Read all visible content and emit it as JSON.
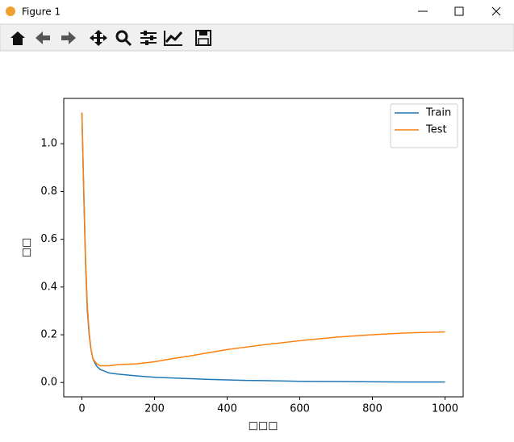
{
  "window": {
    "title": "Figure 1"
  },
  "chart_data": {
    "type": "line",
    "x_label": "□□□",
    "y_label": "□□",
    "x": [
      0,
      5,
      10,
      15,
      20,
      25,
      30,
      40,
      50,
      75,
      100,
      150,
      200,
      250,
      300,
      350,
      400,
      450,
      500,
      600,
      700,
      800,
      900,
      1000
    ],
    "series": [
      {
        "name": "Train",
        "color": "#1f77b4",
        "values": [
          1.13,
          0.8,
          0.5,
          0.3,
          0.2,
          0.14,
          0.1,
          0.07,
          0.055,
          0.04,
          0.035,
          0.028,
          0.022,
          0.019,
          0.016,
          0.013,
          0.011,
          0.009,
          0.008,
          0.005,
          0.004,
          0.003,
          0.002,
          0.002
        ]
      },
      {
        "name": "Test",
        "color": "#ff7f0e",
        "values": [
          1.13,
          0.82,
          0.52,
          0.32,
          0.21,
          0.14,
          0.1,
          0.08,
          0.07,
          0.07,
          0.075,
          0.078,
          0.087,
          0.1,
          0.112,
          0.125,
          0.138,
          0.148,
          0.158,
          0.175,
          0.19,
          0.2,
          0.208,
          0.212
        ]
      }
    ],
    "xlim": [
      -50,
      1050
    ],
    "ylim": [
      -0.06,
      1.19
    ],
    "xticks": [
      0,
      200,
      400,
      600,
      800,
      1000
    ],
    "yticks": [
      {
        "value": 0,
        "label": "0.0"
      },
      0.2,
      0.4,
      0.6,
      0.8,
      {
        "value": 1,
        "label": "1.0"
      }
    ],
    "grid": false,
    "legend": "upper right"
  }
}
